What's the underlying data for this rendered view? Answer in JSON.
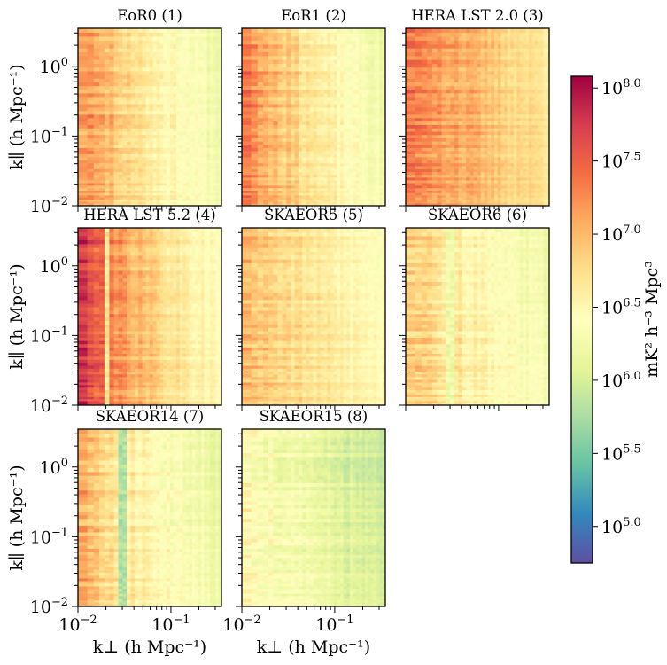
{
  "chart_data": {
    "type": "heatmap",
    "title": "",
    "xlabel": "k⊥ (h Mpc⁻¹)",
    "ylabel": "k∥ (h Mpc⁻¹)",
    "xscale": "log",
    "yscale": "log",
    "xlim": [
      0.01,
      0.35
    ],
    "ylim": [
      0.01,
      3.5
    ],
    "x_ticks": [
      {
        "value": 0.01,
        "base": "10",
        "exp": "−2"
      },
      {
        "value": 0.1,
        "base": "10",
        "exp": "−1"
      }
    ],
    "y_ticks": [
      {
        "value": 0.01,
        "base": "10",
        "exp": "−2"
      },
      {
        "value": 0.1,
        "base": "10",
        "exp": "−1"
      },
      {
        "value": 1,
        "base": "10",
        "exp": "0"
      }
    ],
    "panels": [
      {
        "title": "EoR0 (1)",
        "level": 6.85,
        "low_k_boost": 0.45,
        "high_k_decay": 0.55,
        "notch": null,
        "seed": 11
      },
      {
        "title": "EoR1 (2)",
        "level": 6.85,
        "low_k_boost": 0.55,
        "high_k_decay": 0.55,
        "notch": null,
        "seed": 23
      },
      {
        "title": "HERA LST 2.0 (3)",
        "level": 7.15,
        "low_k_boost": 0.3,
        "high_k_decay": 0.4,
        "notch": null,
        "seed": 37
      },
      {
        "title": "HERA LST 5.2 (4)",
        "level": 7.0,
        "low_k_boost": 0.75,
        "high_k_decay": 0.5,
        "notch": {
          "k_perp": 0.021,
          "value": 6.7
        },
        "seed": 41
      },
      {
        "title": "SKAEOR5 (5)",
        "level": 6.85,
        "low_k_boost": 0.2,
        "high_k_decay": 0.35,
        "notch": null,
        "seed": 53
      },
      {
        "title": "SKAEOR6 (6)",
        "level": 6.75,
        "low_k_boost": 0.25,
        "high_k_decay": 0.45,
        "notch": {
          "k_perp": 0.03,
          "value": 6.2
        },
        "seed": 67
      },
      {
        "title": "SKAEOR14 (7)",
        "level": 6.65,
        "low_k_boost": 0.4,
        "high_k_decay": 0.4,
        "notch": {
          "k_perp": 0.03,
          "value": 5.8
        },
        "seed": 71
      },
      {
        "title": "SKAEOR15 (8)",
        "level": 6.35,
        "low_k_boost": 0.15,
        "high_k_decay": 0.35,
        "notch": null,
        "seed": 83
      }
    ],
    "colorbar": {
      "label": "mK² h⁻³ Mpc³",
      "scale": "log10",
      "range": [
        4.75,
        8.08
      ],
      "colormap": "Spectral_r",
      "ticks": [
        {
          "value": 5.0,
          "base": "10",
          "exp": "5.0"
        },
        {
          "value": 5.5,
          "base": "10",
          "exp": "5.5"
        },
        {
          "value": 6.0,
          "base": "10",
          "exp": "6.0"
        },
        {
          "value": 6.5,
          "base": "10",
          "exp": "6.5"
        },
        {
          "value": 7.0,
          "base": "10",
          "exp": "7.0"
        },
        {
          "value": 7.5,
          "base": "10",
          "exp": "7.5"
        },
        {
          "value": 8.0,
          "base": "10",
          "exp": "8.0"
        }
      ],
      "colors": [
        "#5e4fa2",
        "#3288bd",
        "#66c2a5",
        "#abdda4",
        "#e6f598",
        "#ffffbf",
        "#fee08b",
        "#fdae61",
        "#f46d43",
        "#d53e4f",
        "#9e0142"
      ]
    }
  }
}
